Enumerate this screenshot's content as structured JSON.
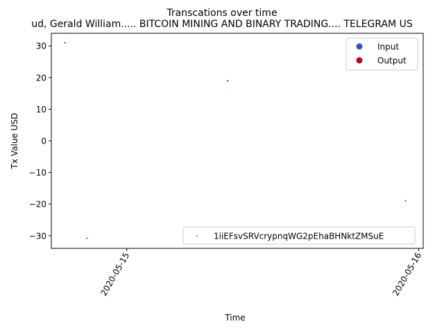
{
  "chart_data": {
    "type": "scatter",
    "title": "Transcations over time",
    "subtitle": "ud, Gerald William..... BITCOIN MINING AND BINARY TRADING.... TELEGRAM US",
    "xlabel": "Time",
    "ylabel": "Tx Value USD",
    "x_ticks": [
      "2020-05-15",
      "2020-05-16"
    ],
    "y_ticks": [
      30,
      20,
      10,
      0,
      -10,
      -20,
      -30
    ],
    "ylim": [
      -34,
      34
    ],
    "xlim": [
      "2020-05-14 17:48",
      "2020-05-16 00:22"
    ],
    "grid": false,
    "legend_colors": {
      "placement": "top-right",
      "entries": [
        {
          "label": "Input",
          "color": "#3b4cc0"
        },
        {
          "label": "Output",
          "color": "#b40426"
        }
      ]
    },
    "legend_series": {
      "placement": "lower-right",
      "entries": [
        {
          "label": "1iiEFsvSRVcrypnqWG2pEhaBHNktZMSuE",
          "color": "#1f77b4"
        }
      ]
    },
    "series": [
      {
        "name": "1iiEFsvSRVcrypnqWG2pEhaBHNktZMSuE",
        "points": [
          {
            "x": "2020-05-14 18:55",
            "y": 31,
            "kind": "Output",
            "color": "#b40426"
          },
          {
            "x": "2020-05-14 20:43",
            "y": -30.8,
            "kind": "Input",
            "color": "#3b4cc0"
          },
          {
            "x": "2020-05-15 08:18",
            "y": 19,
            "kind": "Output",
            "color": "#b40426"
          },
          {
            "x": "2020-05-15 22:55",
            "y": -19,
            "kind": "Input",
            "color": "#3b4cc0"
          }
        ]
      }
    ]
  }
}
